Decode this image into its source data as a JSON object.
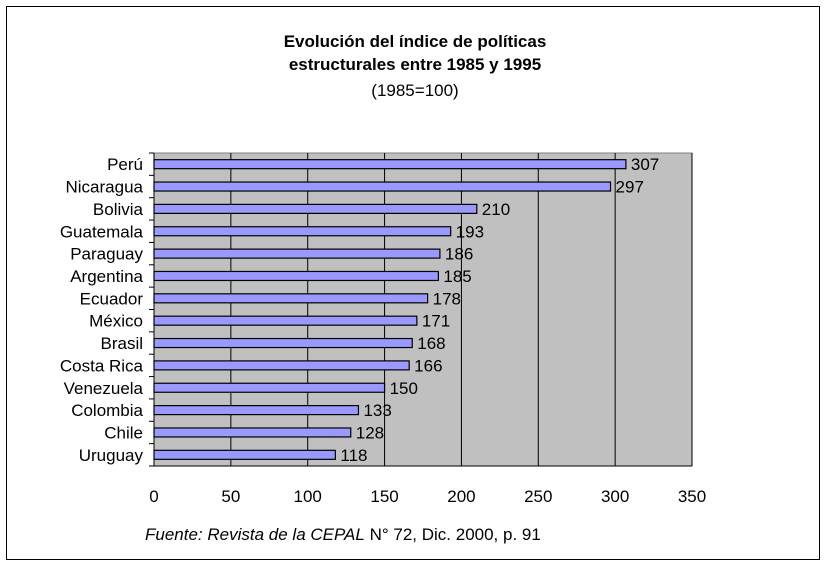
{
  "chart_data": {
    "type": "bar",
    "orientation": "horizontal",
    "title_line1": "Evolución del índice de políticas",
    "title_line2": "estructurales entre 1985 y 1995",
    "subtitle": "(1985=100)",
    "categories": [
      "Perú",
      "Nicaragua",
      "Bolivia",
      "Guatemala",
      "Paraguay",
      "Argentina",
      "Ecuador",
      "México",
      "Brasil",
      "Costa Rica",
      "Venezuela",
      "Colombia",
      "Chile",
      "Uruguay"
    ],
    "values": [
      307,
      297,
      210,
      193,
      186,
      185,
      178,
      171,
      168,
      166,
      150,
      133,
      128,
      118
    ],
    "xlim": [
      0,
      350
    ],
    "xticks": [
      0,
      50,
      100,
      150,
      200,
      250,
      300,
      350
    ],
    "grid": "vertical",
    "bar_color": "#9999ff",
    "plot_background": "#c0c0c0",
    "legend": "none"
  },
  "source": {
    "prefix_italic": "Fuente: Revista de la CEPAL",
    "suffix": " N° 72, Dic. 2000, p. 91"
  }
}
